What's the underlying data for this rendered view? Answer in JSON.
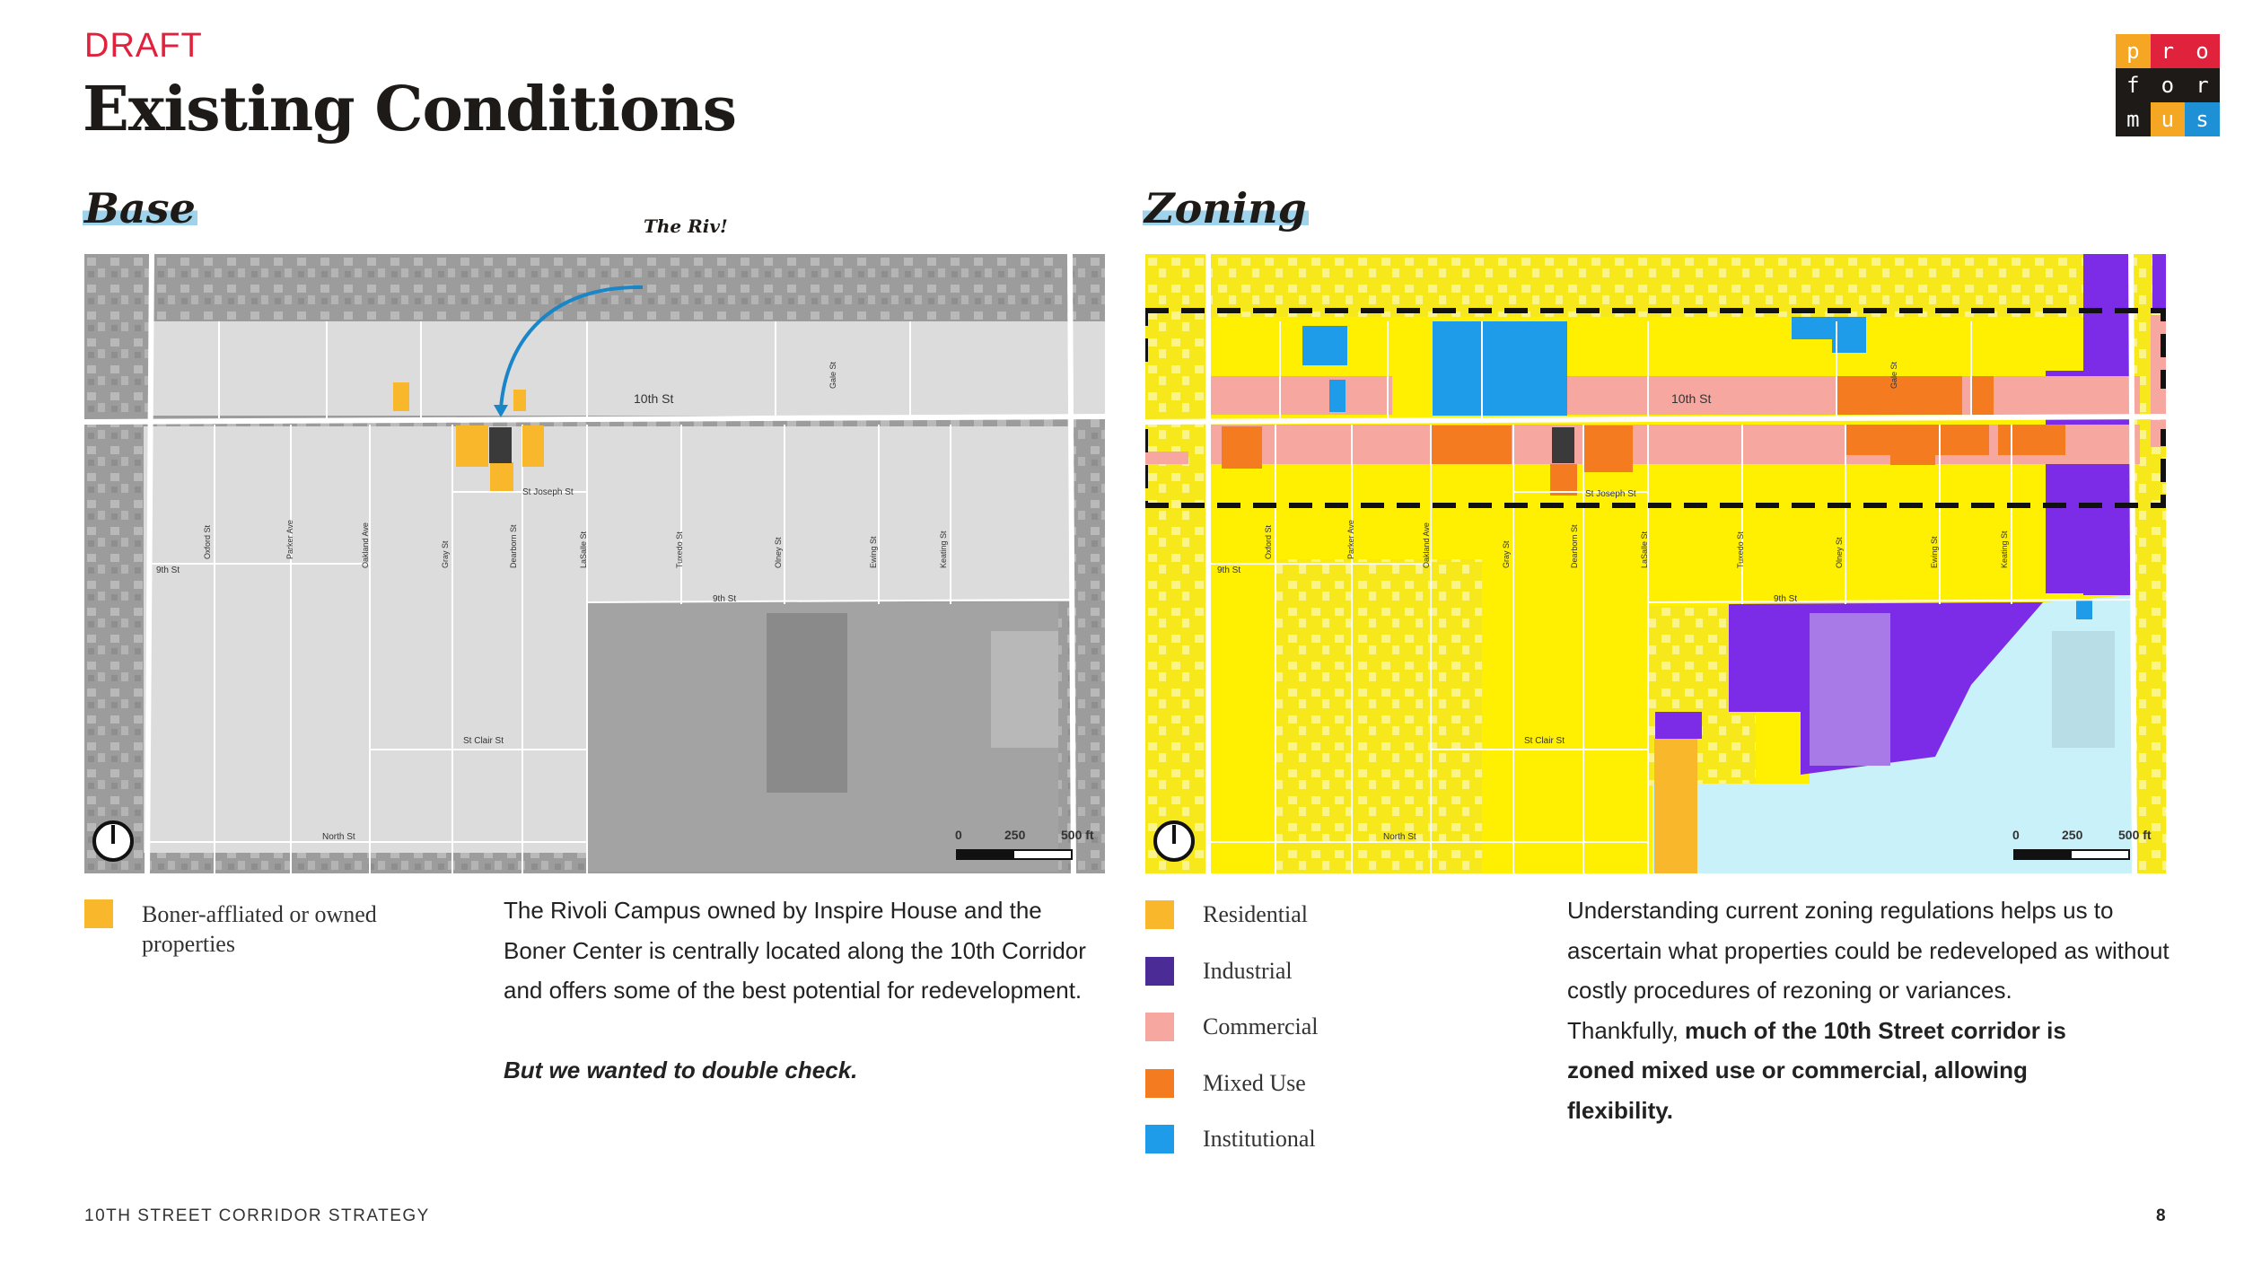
{
  "header": {
    "draft_label": "DRAFT",
    "title": "Existing Conditions"
  },
  "logo": {
    "cells": [
      {
        "letter": "p",
        "color": "#f5a623"
      },
      {
        "letter": "r",
        "color": "#e0223c"
      },
      {
        "letter": "o",
        "color": "#e0223c"
      },
      {
        "letter": "f",
        "color": "#1e1a17"
      },
      {
        "letter": "o",
        "color": "#1e1a17"
      },
      {
        "letter": "r",
        "color": "#1e1a17"
      },
      {
        "letter": "m",
        "color": "#1e1a17"
      },
      {
        "letter": "u",
        "color": "#f5a623"
      },
      {
        "letter": "s",
        "color": "#1e90d6"
      }
    ]
  },
  "base": {
    "title": "Base",
    "callout": "The Riv!",
    "streets": {
      "tenth": "10th St",
      "st_joseph": "St Joseph St",
      "ninth_w": "9th St",
      "ninth_e": "9th St",
      "st_clair": "St Clair St",
      "north": "North St",
      "gale": "Gale St",
      "oxford": "Oxford St",
      "parker": "Parker Ave",
      "oakland": "Oakland Ave",
      "gray": "Gray St",
      "dearborn": "Dearborn St",
      "lasalle": "LaSalle St",
      "tuxedo": "Tuxedo St",
      "olney": "Olney St",
      "ewing": "Ewing St",
      "keating": "Keating St"
    },
    "scale": {
      "zero": "0",
      "mid": "250",
      "end": "500 ft"
    },
    "legend": {
      "color": "#f9b82b",
      "label": "Boner-affliated or owned properties"
    },
    "text": "The Rivoli Campus owned by Inspire House and the Boner Center is centrally located along the 10th Corridor and offers some of the best potential for redevelopment.",
    "emphasis": "But we wanted to double check."
  },
  "zoning": {
    "title": "Zoning",
    "streets": {
      "tenth": "10th St",
      "st_joseph": "St Joseph St",
      "ninth_w": "9th St",
      "ninth_e": "9th St",
      "st_clair": "St Clair St",
      "north": "North St",
      "gale": "Gale St",
      "oxford": "Oxford St",
      "parker": "Parker Ave",
      "oakland": "Oakland Ave",
      "gray": "Gray St",
      "dearborn": "Dearborn St",
      "lasalle": "LaSalle St",
      "tuxedo": "Tuxedo St",
      "olney": "Olney St",
      "ewing": "Ewing St",
      "keating": "Keating St"
    },
    "scale": {
      "zero": "0",
      "mid": "250",
      "end": "500 ft"
    },
    "legend": [
      {
        "label": "Residential",
        "color": "#f9b82b"
      },
      {
        "label": "Industrial",
        "color": "#4b2c96"
      },
      {
        "label": "Commercial",
        "color": "#f6a8a0"
      },
      {
        "label": "Mixed Use",
        "color": "#f47b20"
      },
      {
        "label": "Institutional",
        "color": "#1e9be9"
      }
    ],
    "text": "Understanding current zoning regulations helps us to ascertain what properties could be redeveloped as without costly procedures of rezoning or variances.",
    "thankfully": "Thankfully,",
    "emphasis": "much of the 10th Street corridor is zoned mixed use or commercial, allowing flexibility."
  },
  "footer": {
    "label": "10TH STREET CORRIDOR STRATEGY",
    "page": "8"
  }
}
